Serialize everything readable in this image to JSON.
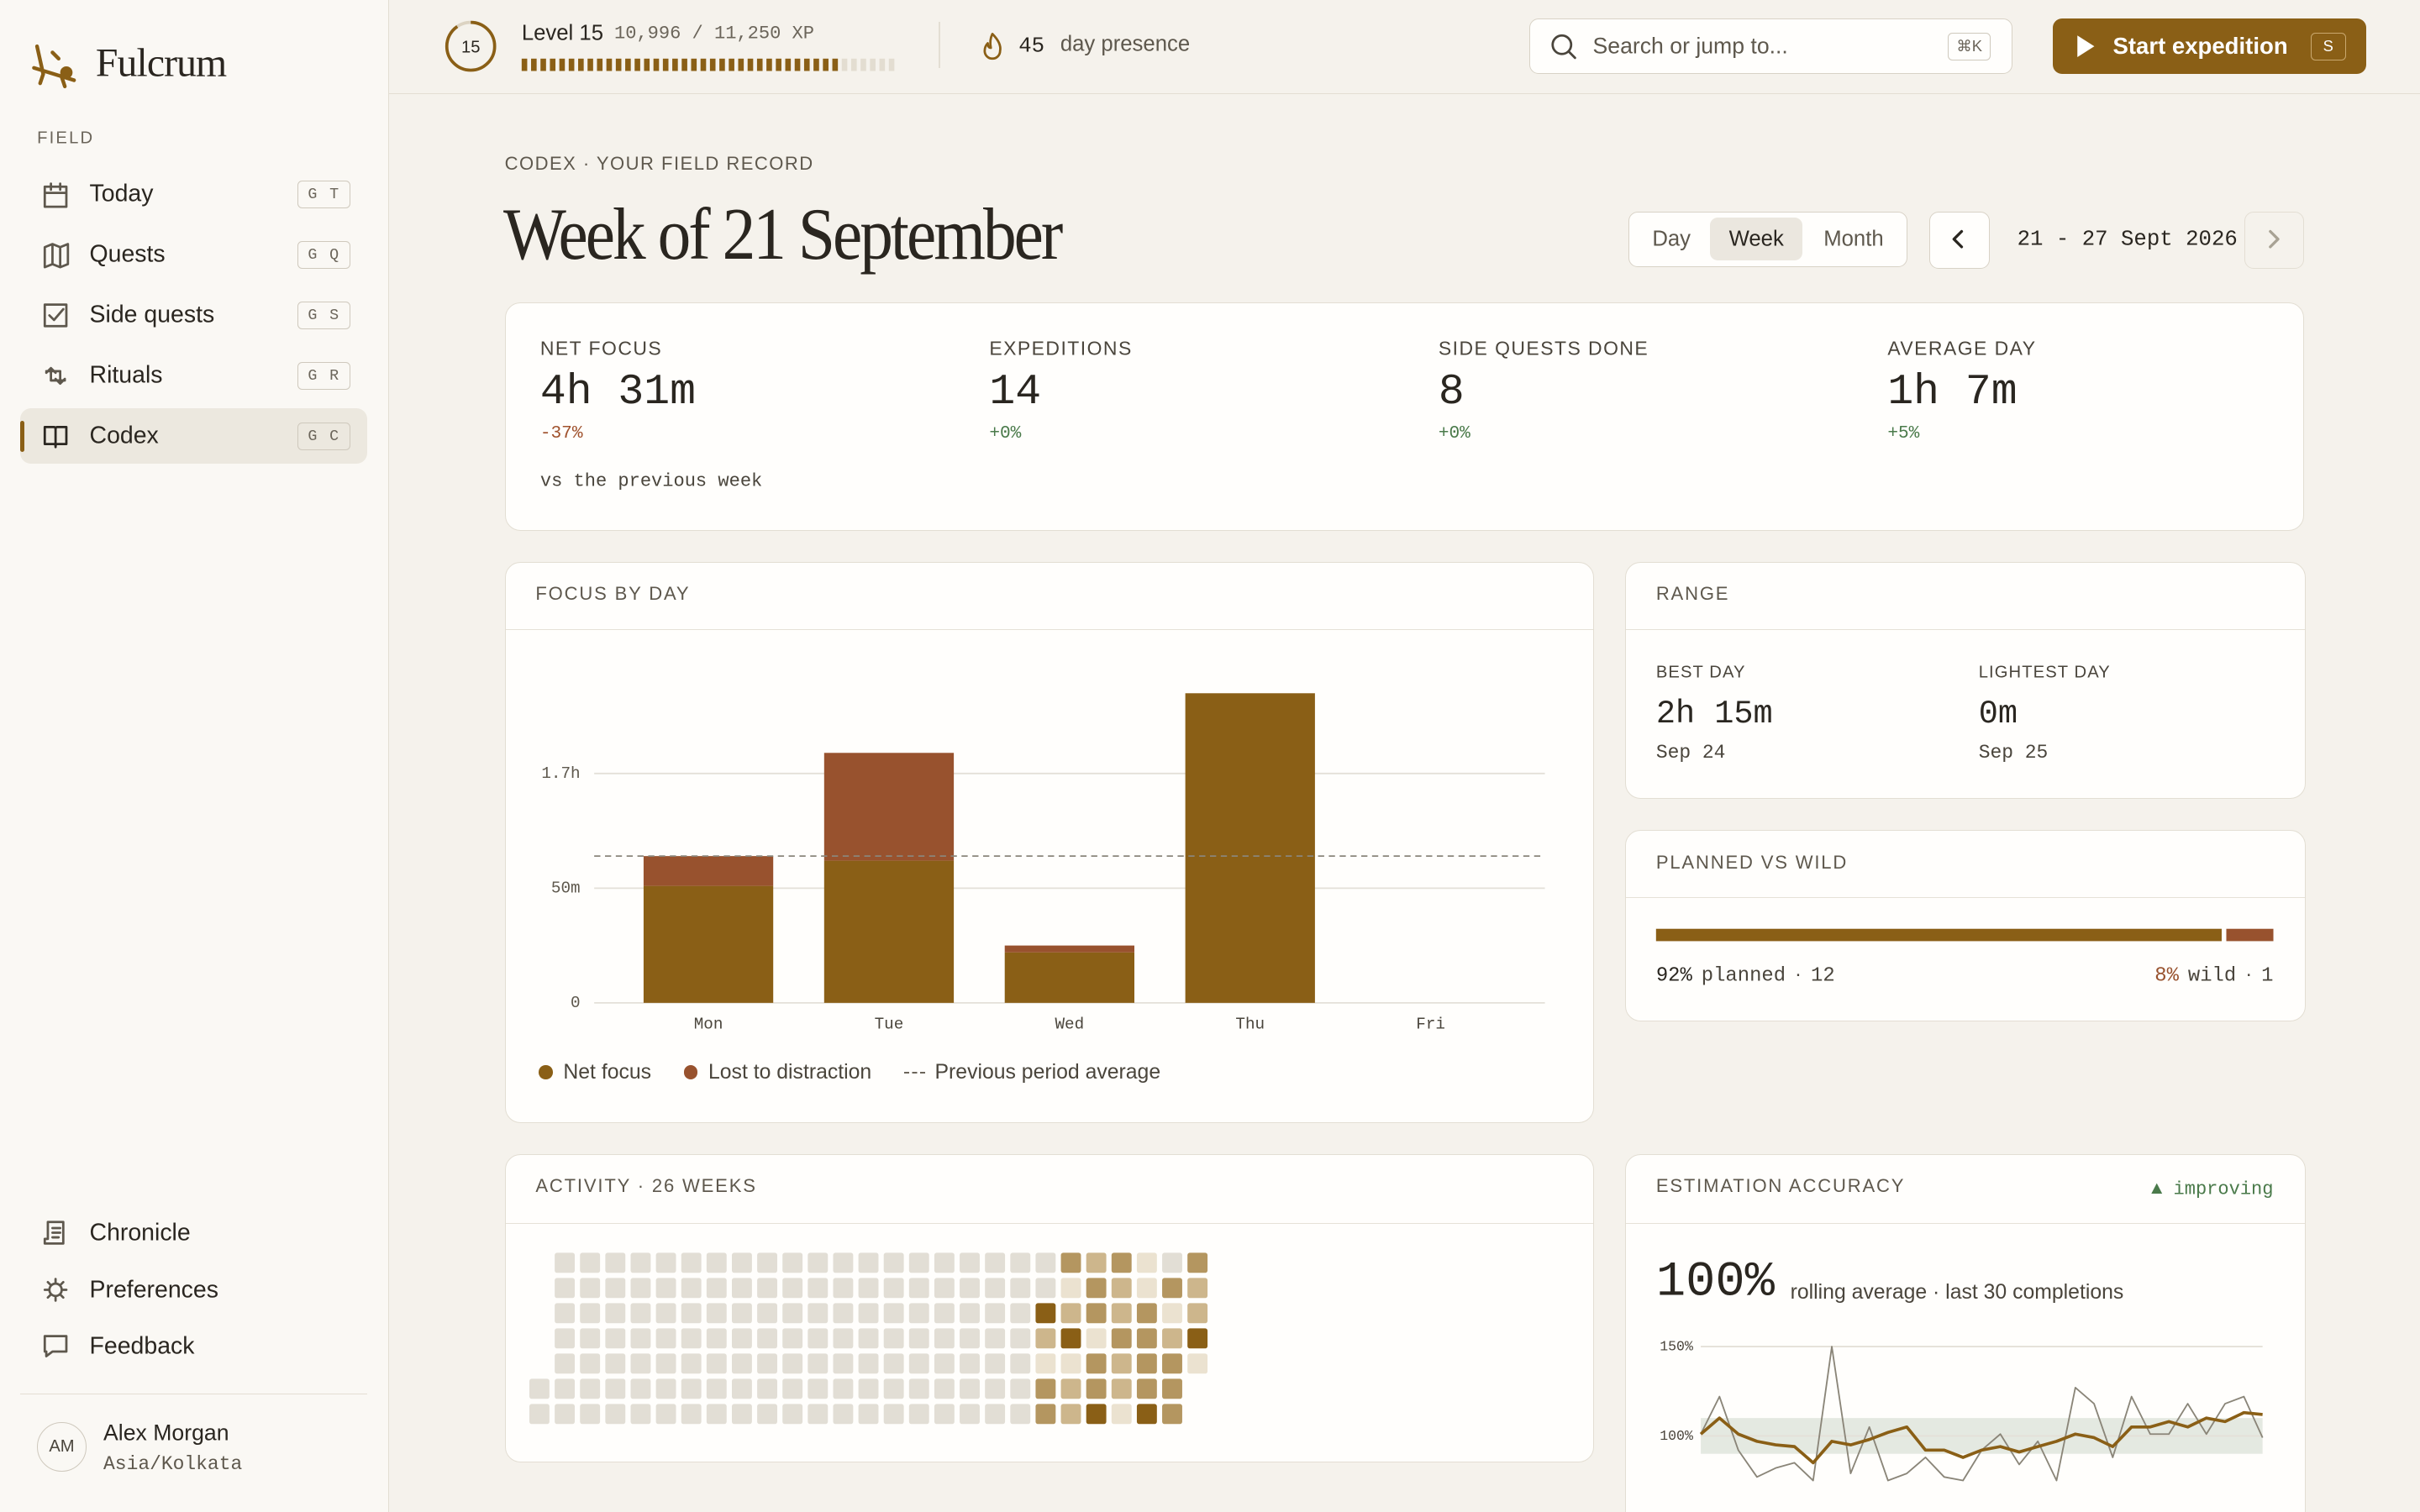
{
  "sidebar": {
    "brand": "Fulcrum",
    "section": "FIELD",
    "nav": [
      {
        "label": "Today",
        "keys": "G T"
      },
      {
        "label": "Quests",
        "keys": "G Q"
      },
      {
        "label": "Side quests",
        "keys": "G S"
      },
      {
        "label": "Rituals",
        "keys": "G R"
      },
      {
        "label": "Codex",
        "keys": "G C"
      }
    ],
    "active": 4,
    "footer_nav": [
      "Chronicle",
      "Preferences",
      "Feedback"
    ],
    "user": {
      "initials": "AM",
      "name": "Alex Morgan",
      "timezone": "Asia/Kolkata"
    }
  },
  "topbar": {
    "level_badge": "15",
    "level": "Level 15",
    "xp": "10,996 / 11,250 XP",
    "streak": "45",
    "streak_label": "day presence",
    "search": "Search or jump to...",
    "search_key": "⌘K",
    "cta": "Start expedition",
    "cta_key": "S"
  },
  "header": {
    "eyebrow": "CODEX · YOUR FIELD RECORD",
    "title": "Week of 21 September",
    "periods": [
      "Day",
      "Week",
      "Month"
    ],
    "active_period": 1,
    "range": "21 - 27 Sept 2026"
  },
  "stats": {
    "items": [
      {
        "label": "NET FOCUS",
        "value": "4h 31m",
        "delta": "-37%"
      },
      {
        "label": "EXPEDITIONS",
        "value": "14",
        "delta": "+0%"
      },
      {
        "label": "SIDE QUESTS DONE",
        "value": "8",
        "delta": "+0%"
      },
      {
        "label": "AVERAGE DAY",
        "value": "1h 7m",
        "delta": "+5%"
      }
    ],
    "note": "vs the previous week"
  },
  "range": {
    "title": "RANGE",
    "best": {
      "label": "BEST DAY",
      "value": "2h 15m",
      "date": "Sep 24"
    },
    "lightest": {
      "label": "LIGHTEST DAY",
      "value": "0m",
      "date": "Sep 25"
    }
  },
  "chart_data": [
    {
      "type": "bar",
      "stacked": true,
      "title": "FOCUS BY DAY",
      "categories": [
        "Mon",
        "Tue",
        "Wed",
        "Thu",
        "Fri"
      ],
      "series": [
        {
          "name": "Net focus",
          "color": "#8a5f16",
          "values": [
            51,
            62,
            22,
            135,
            0
          ]
        },
        {
          "name": "Lost to distraction",
          "color": "#98522e",
          "values": [
            13,
            47,
            3,
            0,
            0
          ]
        }
      ],
      "reference": {
        "name": "Previous period average",
        "value": 64
      },
      "ylim": [
        0,
        148
      ],
      "yticks": [
        0,
        {
          "value": 50,
          "label": "50m"
        },
        {
          "value": 100,
          "label": "1.7h"
        }
      ],
      "grid": true
    },
    {
      "type": "hbar",
      "stacked": true,
      "title": "PLANNED VS WILD",
      "series": [
        {
          "name": "planned",
          "color": "#8a5f16",
          "values": [
            92
          ],
          "value_labels": [
            "92%"
          ],
          "counts": [
            12
          ]
        },
        {
          "name": "wild",
          "color": "#98522e",
          "values": [
            8
          ],
          "value_labels": [
            "8%"
          ],
          "counts": [
            1
          ]
        }
      ],
      "xlim": [
        0,
        100
      ]
    },
    {
      "type": "heatmap",
      "title": "ACTIVITY · 26 WEEKS",
      "colors": [
        "#e2ded5",
        "#ebe2d0",
        "#cdb68c",
        "#b49660",
        "#8a5f16"
      ],
      "weeks": [
        [
          null,
          null,
          null,
          null,
          null,
          0,
          0
        ],
        [
          0,
          0,
          0,
          0,
          0,
          0,
          0
        ],
        [
          0,
          0,
          0,
          0,
          0,
          0,
          0
        ],
        [
          0,
          0,
          0,
          0,
          0,
          0,
          0
        ],
        [
          0,
          0,
          0,
          0,
          0,
          0,
          0
        ],
        [
          0,
          0,
          0,
          0,
          0,
          0,
          0
        ],
        [
          0,
          0,
          0,
          0,
          0,
          0,
          0
        ],
        [
          0,
          0,
          0,
          0,
          0,
          0,
          0
        ],
        [
          0,
          0,
          0,
          0,
          0,
          0,
          0
        ],
        [
          0,
          0,
          0,
          0,
          0,
          0,
          0
        ],
        [
          0,
          0,
          0,
          0,
          0,
          0,
          0
        ],
        [
          0,
          0,
          0,
          0,
          0,
          0,
          0
        ],
        [
          0,
          0,
          0,
          0,
          0,
          0,
          0
        ],
        [
          0,
          0,
          0,
          0,
          0,
          0,
          0
        ],
        [
          0,
          0,
          0,
          0,
          0,
          0,
          0
        ],
        [
          0,
          0,
          0,
          0,
          0,
          0,
          0
        ],
        [
          0,
          0,
          0,
          0,
          0,
          0,
          0
        ],
        [
          0,
          0,
          0,
          0,
          0,
          0,
          0
        ],
        [
          0,
          0,
          0,
          0,
          0,
          0,
          0
        ],
        [
          0,
          0,
          0,
          0,
          0,
          0,
          0
        ],
        [
          0,
          0,
          4,
          2,
          1,
          3,
          3
        ],
        [
          3,
          1,
          2,
          4,
          1,
          2,
          2
        ],
        [
          2,
          3,
          3,
          1,
          3,
          3,
          4
        ],
        [
          3,
          2,
          2,
          3,
          2,
          2,
          1
        ],
        [
          1,
          1,
          3,
          3,
          3,
          3,
          4
        ],
        [
          0,
          3,
          1,
          2,
          3,
          3,
          3
        ],
        [
          3,
          2,
          2,
          4,
          1,
          null,
          null
        ]
      ]
    },
    {
      "type": "line",
      "title": "ESTIMATION ACCURACY",
      "badge": "▲ improving",
      "headline": "100%",
      "subtitle": "rolling average · last 30 completions",
      "band": [
        90,
        110
      ],
      "series": [
        {
          "color": "#8a8578",
          "values": [
            101,
            122,
            92,
            77,
            82,
            85,
            75,
            150,
            79,
            105,
            75,
            79,
            88,
            77,
            75,
            92,
            101,
            84,
            97,
            75,
            127,
            118,
            88,
            122,
            101,
            101,
            118,
            101,
            118,
            122,
            99
          ]
        },
        {
          "color": "#8a5f16",
          "values": [
            101,
            110,
            101,
            97,
            95,
            94,
            85,
            97,
            95,
            98,
            102,
            105,
            92,
            92,
            88,
            92,
            94,
            91,
            94,
            97,
            101,
            99,
            94,
            105,
            105,
            108,
            105,
            110,
            108,
            113,
            112
          ]
        }
      ],
      "ylim": [
        60,
        155
      ],
      "yticks": [
        {
          "value": 150,
          "label": "150%"
        },
        {
          "value": 100,
          "label": "100%"
        }
      ],
      "grid": true
    }
  ]
}
